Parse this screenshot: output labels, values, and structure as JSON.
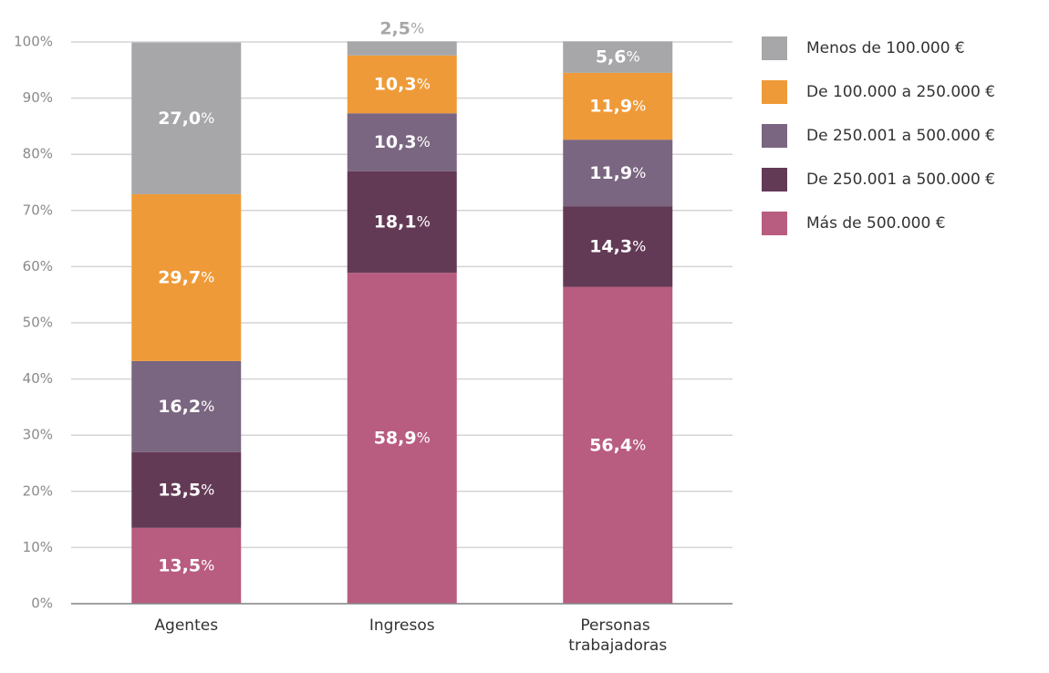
{
  "chart_data": {
    "type": "stacked_bar",
    "categories": [
      "Agentes",
      "Ingresos",
      "Personas trabajadoras"
    ],
    "series": [
      {
        "name": "Más de 500.000 €",
        "color": "#b85c80",
        "values": [
          13.5,
          58.9,
          56.4
        ],
        "value_labels": [
          "13,5%",
          "58,9%",
          "56,4%"
        ]
      },
      {
        "name": "De 250.001 a 500.000 €",
        "color": "#633a56",
        "values": [
          13.5,
          18.1,
          14.3
        ],
        "value_labels": [
          "13,5%",
          "18,1%",
          "14,3%"
        ]
      },
      {
        "name": "De 250.001 a 500.000 €",
        "color": "#7a6680",
        "values": [
          16.2,
          10.3,
          11.9
        ],
        "value_labels": [
          "16,2%",
          "10,3%",
          "11,9%"
        ]
      },
      {
        "name": "De 100.000 a 250.000 €",
        "color": "#ef9a38",
        "values": [
          29.7,
          10.3,
          11.9
        ],
        "value_labels": [
          "29,7%",
          "10,3%",
          "11,9%"
        ]
      },
      {
        "name": "Menos de 100.000 €",
        "color": "#a7a7aa",
        "values": [
          27.0,
          2.5,
          5.6
        ],
        "value_labels": [
          "27,0%",
          "2,5%",
          "5,6%"
        ]
      }
    ],
    "ylim": [
      0,
      100
    ],
    "yticks": [
      {
        "value": 0,
        "label": "0%"
      },
      {
        "value": 10,
        "label": "10%"
      },
      {
        "value": 20,
        "label": "20%"
      },
      {
        "value": 30,
        "label": "30%"
      },
      {
        "value": 40,
        "label": "40%"
      },
      {
        "value": 50,
        "label": "50%"
      },
      {
        "value": 60,
        "label": "60%"
      },
      {
        "value": 70,
        "label": "70%"
      },
      {
        "value": 80,
        "label": "80%"
      },
      {
        "value": 90,
        "label": "90%"
      },
      {
        "value": 100,
        "label": "100%"
      }
    ],
    "grid": true,
    "legend": "right"
  }
}
